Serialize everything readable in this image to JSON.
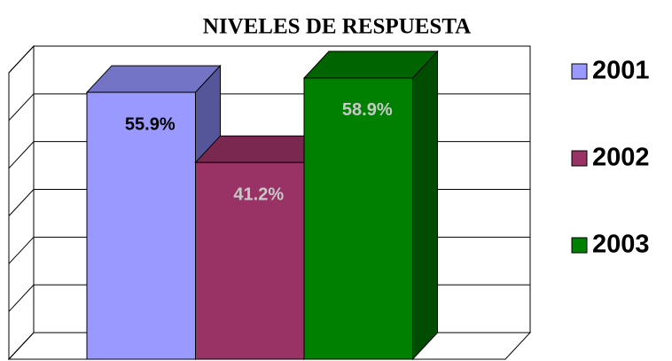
{
  "chart_data": {
    "type": "bar3d",
    "title": "NIVELES DE RESPUESTA",
    "series": [
      {
        "name": "2001",
        "color": "#9999ff",
        "shade": "#7474c6",
        "dark": "#55559a",
        "label_color": "#000000",
        "values": [
          55.9
        ],
        "value_labels": [
          "55.9%"
        ]
      },
      {
        "name": "2002",
        "color": "#993366",
        "shade": "#7a2850",
        "dark": "#6a2246",
        "label_color": "#c8c8c8",
        "values": [
          41.2
        ],
        "value_labels": [
          "41.2%"
        ]
      },
      {
        "name": "2003",
        "color": "#008000",
        "shade": "#006400",
        "dark": "#004c00",
        "label_color": "#c8c8c8",
        "values": [
          58.9
        ],
        "value_labels": [
          "58.9%"
        ]
      }
    ],
    "ylim": [
      0,
      60
    ],
    "yticks": [
      0,
      10,
      20,
      30,
      40,
      50,
      60
    ],
    "grid": true,
    "legend": "right"
  }
}
